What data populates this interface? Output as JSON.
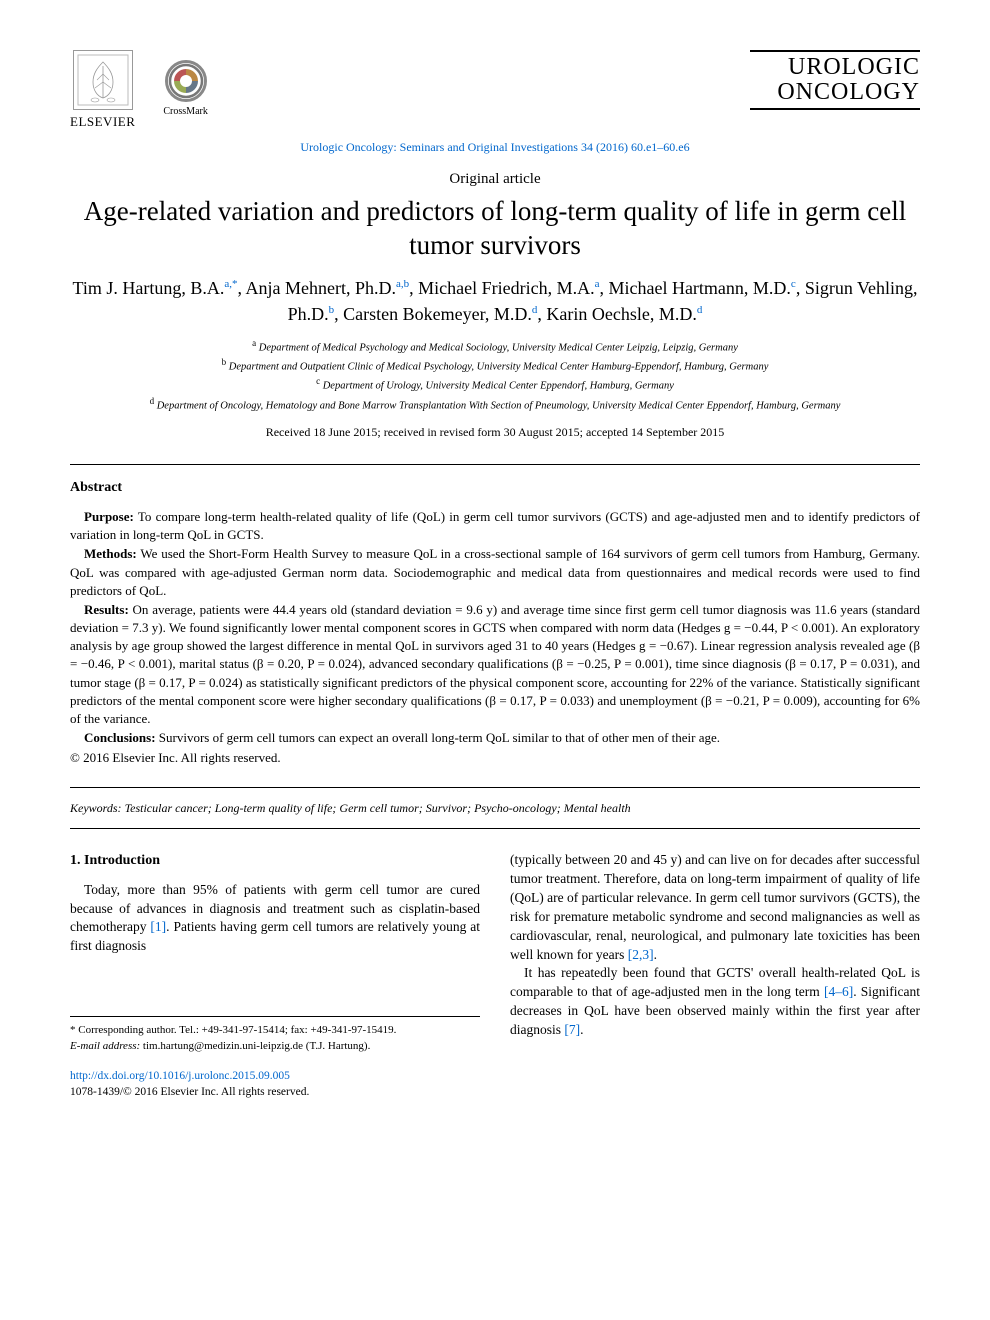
{
  "header": {
    "publisher_name": "ELSEVIER",
    "crossmark_label": "CrossMark",
    "journal_title_line1": "UROLOGIC",
    "journal_title_line2": "ONCOLOGY",
    "citation": "Urologic Oncology: Seminars and Original Investigations 34 (2016) 60.e1–60.e6"
  },
  "article": {
    "type": "Original article",
    "title": "Age-related variation and predictors of long-term quality of life in germ cell tumor survivors",
    "authors_html": "Tim J. Hartung, B.A.<sup>a,*</sup>, Anja Mehnert, Ph.D.<sup>a,b</sup>, Michael Friedrich, M.A.<sup>a</sup>, Michael Hartmann, M.D.<sup>c</sup>, Sigrun Vehling, Ph.D.<sup>b</sup>, Carsten Bokemeyer, M.D.<sup>d</sup>, Karin Oechsle, M.D.<sup>d</sup>",
    "affiliations": [
      {
        "sup": "a",
        "text": "Department of Medical Psychology and Medical Sociology, University Medical Center Leipzig, Leipzig, Germany"
      },
      {
        "sup": "b",
        "text": "Department and Outpatient Clinic of Medical Psychology, University Medical Center Hamburg-Eppendorf, Hamburg, Germany"
      },
      {
        "sup": "c",
        "text": "Department of Urology, University Medical Center Eppendorf, Hamburg, Germany"
      },
      {
        "sup": "d",
        "text": "Department of Oncology, Hematology and Bone Marrow Transplantation With Section of Pneumology, University Medical Center Eppendorf, Hamburg, Germany"
      }
    ],
    "dates": "Received 18 June 2015; received in revised form 30 August 2015; accepted 14 September 2015"
  },
  "abstract": {
    "heading": "Abstract",
    "purpose_label": "Purpose:",
    "purpose": " To compare long-term health-related quality of life (QoL) in germ cell tumor survivors (GCTS) and age-adjusted men and to identify predictors of variation in long-term QoL in GCTS.",
    "methods_label": "Methods:",
    "methods": " We used the Short-Form Health Survey to measure QoL in a cross-sectional sample of 164 survivors of germ cell tumors from Hamburg, Germany. QoL was compared with age-adjusted German norm data. Sociodemographic and medical data from questionnaires and medical records were used to find predictors of QoL.",
    "results_label": "Results:",
    "results": " On average, patients were 44.4 years old (standard deviation = 9.6 y) and average time since first germ cell tumor diagnosis was 11.6 years (standard deviation = 7.3 y). We found significantly lower mental component scores in GCTS when compared with norm data (Hedges g = −0.44, P < 0.001). An exploratory analysis by age group showed the largest difference in mental QoL in survivors aged 31 to 40 years (Hedges g = −0.67). Linear regression analysis revealed age (β = −0.46, P < 0.001), marital status (β = 0.20, P = 0.024), advanced secondary qualifications (β = −0.25, P = 0.001), time since diagnosis (β = 0.17, P = 0.031), and tumor stage (β = 0.17, P = 0.024) as statistically significant predictors of the physical component score, accounting for 22% of the variance. Statistically significant predictors of the mental component score were higher secondary qualifications (β = 0.17, P = 0.033) and unemployment (β = −0.21, P = 0.009), accounting for 6% of the variance.",
    "conclusions_label": "Conclusions:",
    "conclusions": " Survivors of germ cell tumors can expect an overall long-term QoL similar to that of other men of their age.",
    "copyright": "© 2016 Elsevier Inc. All rights reserved."
  },
  "keywords": {
    "label": "Keywords:",
    "list": " Testicular cancer; Long-term quality of life; Germ cell tumor; Survivor; Psycho-oncology; Mental health"
  },
  "intro": {
    "heading": "1. Introduction",
    "col1_p1_pre": "Today, more than 95% of patients with germ cell tumor are cured because of advances in diagnosis and treatment such as cisplatin-based chemotherapy ",
    "ref1": "[1]",
    "col1_p1_post": ". Patients having germ cell tumors are relatively young at first diagnosis",
    "col2_p1_pre": "(typically between 20 and 45 y) and can live on for decades after successful tumor treatment. Therefore, data on long-term impairment of quality of life (QoL) are of particular relevance. In germ cell tumor survivors (GCTS), the risk for premature metabolic syndrome and second malignancies as well as cardiovascular, renal, neurological, and pulmonary late toxicities has been well known for years ",
    "ref23": "[2,3]",
    "col2_p1_post": ".",
    "col2_p2_pre": "It has repeatedly been found that GCTS' overall health-related QoL is comparable to that of age-adjusted men in the long term ",
    "ref46": "[4–6]",
    "col2_p2_mid": ". Significant decreases in QoL have been observed mainly within the first year after diagnosis ",
    "ref7": "[7]",
    "col2_p2_post": "."
  },
  "footnote": {
    "corr": "* Corresponding author. Tel.: +49-341-97-15414; fax: +49-341-97-15419.",
    "email_label": "E-mail address:",
    "email": " tim.hartung@medizin.uni-leipzig.de (T.J. Hartung)."
  },
  "doi": {
    "url": "http://dx.doi.org/10.1016/j.urolonc.2015.09.005",
    "issn_line": "1078-1439/© 2016 Elsevier Inc. All rights reserved."
  },
  "colors": {
    "link": "#0066cc",
    "text": "#000000",
    "background": "#ffffff"
  }
}
